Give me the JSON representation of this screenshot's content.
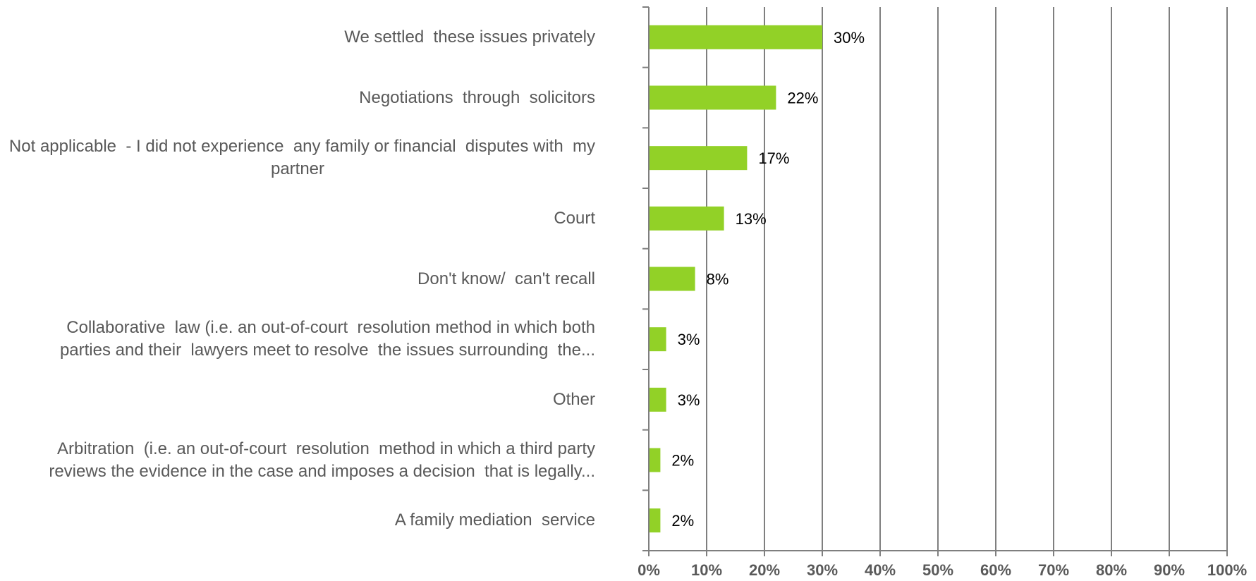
{
  "chart_data": {
    "type": "bar",
    "orientation": "horizontal",
    "categories": [
      [
        "We settled  these issues privately"
      ],
      [
        "Negotiations  through  solicitors"
      ],
      [
        "Not applicable  - I did not experience  any family or financial  disputes with  my",
        "partner"
      ],
      [
        "Court"
      ],
      [
        "Don't know/  can't recall"
      ],
      [
        "Collaborative  law (i.e. an out-of-court  resolution method in which both",
        "parties and their  lawyers meet to resolve  the issues surrounding  the..."
      ],
      [
        "Other"
      ],
      [
        "Arbitration  (i.e. an out-of-court  resolution  method in which a third party",
        "reviews the evidence in the case and imposes a decision  that is legally..."
      ],
      [
        "A family mediation  service"
      ]
    ],
    "values": [
      30,
      22,
      17,
      13,
      8,
      3,
      3,
      2,
      2
    ],
    "data_labels": [
      "30%",
      "22%",
      "17%",
      "13%",
      "8%",
      "3%",
      "3%",
      "2%",
      "2%"
    ],
    "x_ticks": [
      "0%",
      "10%",
      "20%",
      "30%",
      "40%",
      "50%",
      "60%",
      "70%",
      "80%",
      "90%",
      "100%"
    ],
    "xlim": [
      0,
      100
    ],
    "grid": "vertical",
    "colors": {
      "bar": "#92d127",
      "grid": "#7f7f7f",
      "label": "#595959",
      "tick": "#595959",
      "data_label": "#000000"
    }
  }
}
